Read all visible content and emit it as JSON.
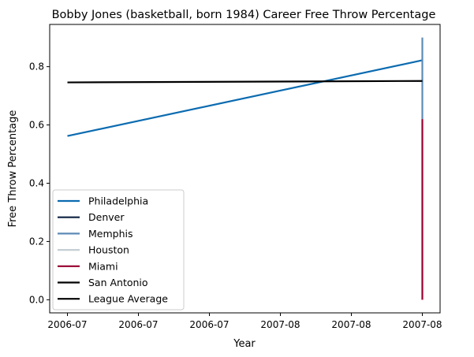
{
  "chart_data": {
    "type": "line",
    "title": "Bobby Jones (basketball, born 1984) Career Free Throw Percentage",
    "xlabel": "Year",
    "ylabel": "Free Throw Percentage",
    "xlim": [
      -0.0125,
      0.2625
    ],
    "ylim": [
      -0.045,
      0.945
    ],
    "x_ticks": [
      {
        "value": 0.0,
        "label": "2006-07"
      },
      {
        "value": 0.05,
        "label": "2006-07"
      },
      {
        "value": 0.1,
        "label": "2006-07"
      },
      {
        "value": 0.15,
        "label": "2007-08"
      },
      {
        "value": 0.2,
        "label": "2007-08"
      },
      {
        "value": 0.25,
        "label": "2007-08"
      }
    ],
    "y_ticks": [
      {
        "value": 0.0,
        "label": "0.0"
      },
      {
        "value": 0.2,
        "label": "0.2"
      },
      {
        "value": 0.4,
        "label": "0.4"
      },
      {
        "value": 0.6,
        "label": "0.6"
      },
      {
        "value": 0.8,
        "label": "0.8"
      }
    ],
    "grid": false,
    "legend_position": "lower-left",
    "series": [
      {
        "name": "Philadelphia",
        "color": "#0b6bb0",
        "points": [
          [
            0.0,
            0.562
          ],
          [
            0.25,
            0.822
          ]
        ]
      },
      {
        "name": "Denver",
        "color": "#0c2340",
        "points": []
      },
      {
        "name": "Memphis",
        "color": "#5d8bb5",
        "points": [
          [
            0.25,
            0.9
          ],
          [
            0.25,
            0.62
          ]
        ]
      },
      {
        "name": "Houston",
        "color": "#c4ced4",
        "points": []
      },
      {
        "name": "Miami",
        "color": "#98002e",
        "points": [
          [
            0.25,
            0.62
          ],
          [
            0.25,
            0.0
          ]
        ]
      },
      {
        "name": "San Antonio",
        "color": "#000000",
        "points": []
      },
      {
        "name": "League Average",
        "color": "#000000",
        "points": [
          [
            0.0,
            0.746
          ],
          [
            0.25,
            0.751
          ]
        ]
      }
    ]
  }
}
